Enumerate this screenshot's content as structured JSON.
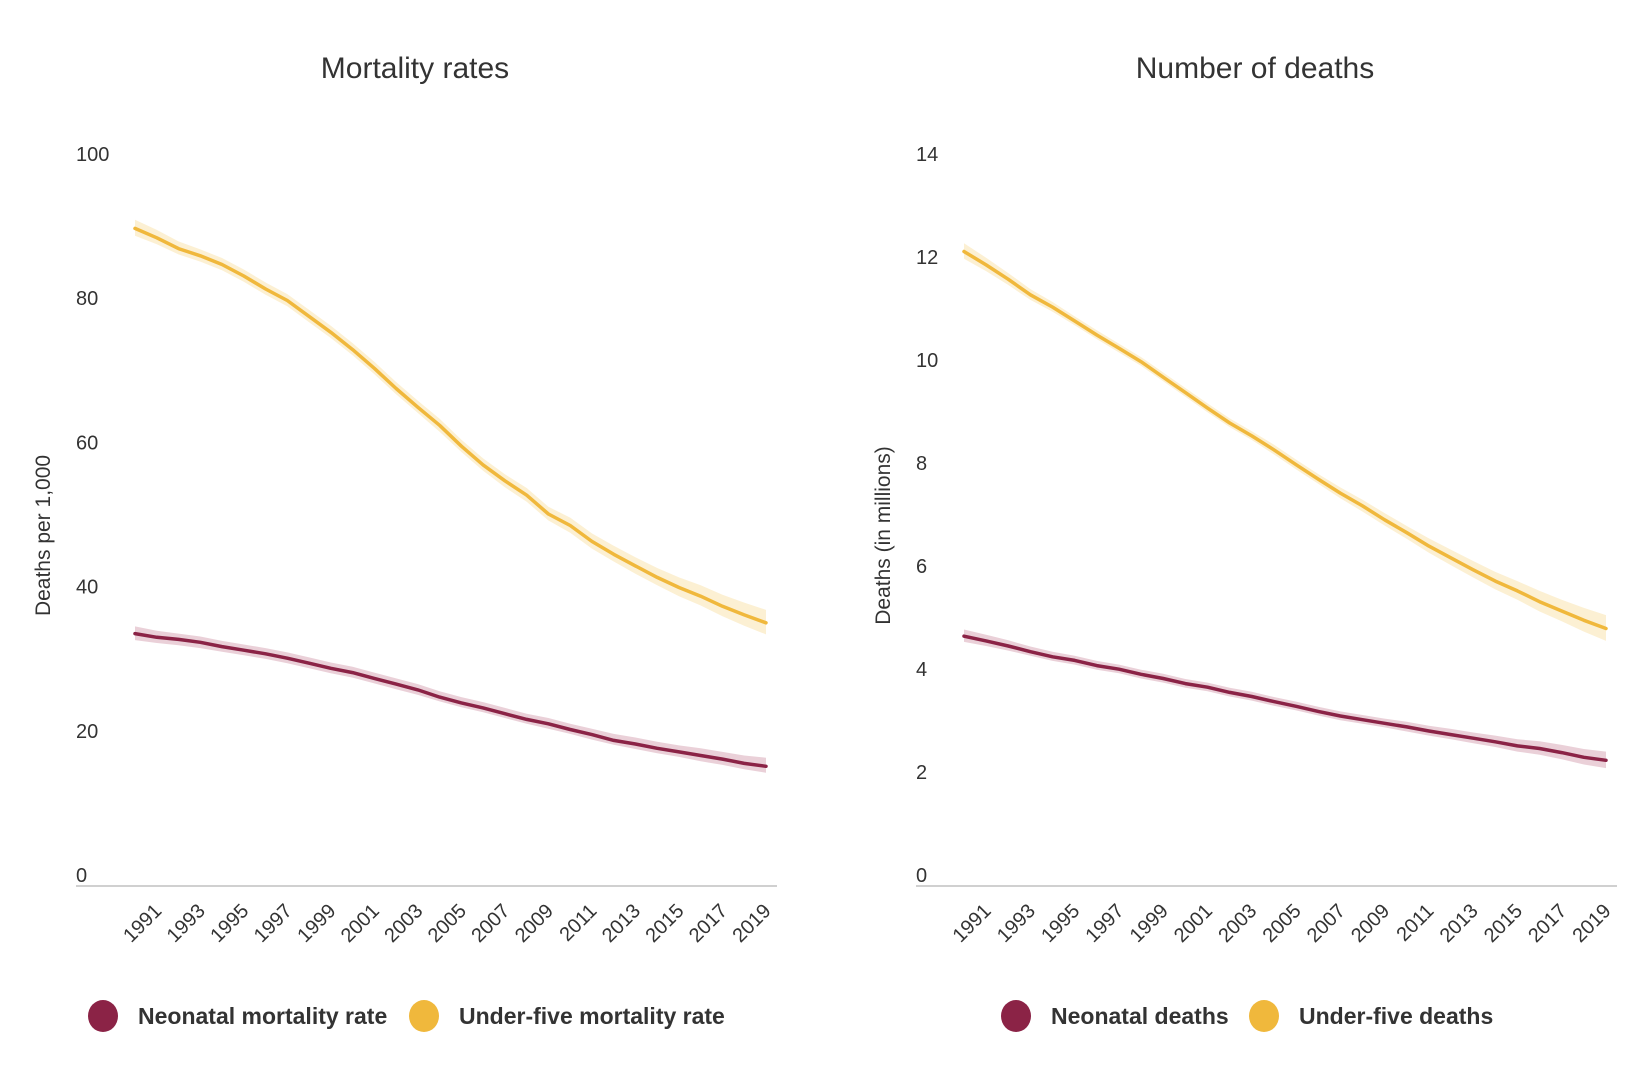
{
  "chart_data": [
    {
      "type": "line",
      "title": "Mortality rates",
      "xlabel": "",
      "ylabel": "Deaths per 1,000",
      "ylim": [
        0,
        100
      ],
      "yticks": [
        0,
        20,
        40,
        60,
        80,
        100
      ],
      "xlim": [
        1990,
        2019
      ],
      "xtick_labels": [
        "1991",
        "1993",
        "1995",
        "1997",
        "1999",
        "2001",
        "2003",
        "2005",
        "2007",
        "2009",
        "2011",
        "2013",
        "2015",
        "2017",
        "2019"
      ],
      "grid": false,
      "legend_position": "bottom",
      "x": [
        1990,
        1991,
        1992,
        1993,
        1994,
        1995,
        1996,
        1997,
        1998,
        1999,
        2000,
        2001,
        2002,
        2003,
        2004,
        2005,
        2006,
        2007,
        2008,
        2009,
        2010,
        2011,
        2012,
        2013,
        2014,
        2015,
        2016,
        2017,
        2018,
        2019
      ],
      "series": [
        {
          "name": "Neonatal mortality rate",
          "color": "#8b2346",
          "band_color": "#d9a9b8",
          "values": [
            35.0,
            34.5,
            34.2,
            33.8,
            33.2,
            32.7,
            32.2,
            31.6,
            30.9,
            30.2,
            29.6,
            28.8,
            28.0,
            27.2,
            26.2,
            25.4,
            24.7,
            23.9,
            23.1,
            22.5,
            21.7,
            21.0,
            20.2,
            19.7,
            19.1,
            18.6,
            18.1,
            17.6,
            17.0,
            16.6
          ],
          "lower": [
            34.1,
            33.7,
            33.4,
            33.0,
            32.5,
            32.0,
            31.5,
            30.9,
            30.2,
            29.5,
            28.9,
            28.1,
            27.3,
            26.5,
            25.6,
            24.8,
            24.1,
            23.3,
            22.5,
            21.8,
            21.1,
            20.3,
            19.6,
            19.0,
            18.4,
            17.9,
            17.3,
            16.8,
            16.2,
            15.7
          ],
          "upper": [
            36.0,
            35.4,
            35.0,
            34.6,
            34.0,
            33.5,
            33.0,
            32.4,
            31.7,
            31.0,
            30.4,
            29.6,
            28.8,
            28.0,
            27.0,
            26.2,
            25.5,
            24.7,
            23.9,
            23.3,
            22.5,
            21.8,
            21.1,
            20.6,
            20.0,
            19.5,
            19.1,
            18.6,
            18.1,
            17.8
          ]
        },
        {
          "name": "Under-five mortality rate",
          "color": "#f0b83c",
          "band_color": "#f9e3ae",
          "values": [
            91.2,
            89.9,
            88.4,
            87.4,
            86.2,
            84.6,
            82.8,
            81.2,
            79.0,
            76.8,
            74.4,
            71.8,
            69.0,
            66.4,
            63.9,
            61.0,
            58.4,
            56.2,
            54.2,
            51.6,
            50.0,
            47.8,
            46.0,
            44.4,
            42.8,
            41.4,
            40.2,
            38.8,
            37.6,
            36.5
          ],
          "lower": [
            90.2,
            89.0,
            87.6,
            86.6,
            85.4,
            83.8,
            82.0,
            80.4,
            78.2,
            76.0,
            73.6,
            71.0,
            68.2,
            65.6,
            63.0,
            60.2,
            57.6,
            55.3,
            53.3,
            50.7,
            49.0,
            46.8,
            45.0,
            43.3,
            41.7,
            40.2,
            38.9,
            37.4,
            36.1,
            34.9
          ],
          "upper": [
            92.4,
            91.0,
            89.4,
            88.3,
            87.1,
            85.5,
            83.7,
            82.1,
            79.9,
            77.7,
            75.3,
            72.7,
            69.9,
            67.3,
            64.8,
            61.9,
            59.3,
            57.1,
            55.2,
            52.6,
            51.1,
            48.9,
            47.2,
            45.6,
            44.1,
            42.8,
            41.7,
            40.4,
            39.3,
            38.3
          ]
        }
      ]
    },
    {
      "type": "line",
      "title": "Number of deaths",
      "xlabel": "",
      "ylabel": "Deaths (in millions)",
      "ylim": [
        0,
        14
      ],
      "yticks": [
        0,
        2,
        4,
        6,
        8,
        10,
        12,
        14
      ],
      "xlim": [
        1990,
        2019
      ],
      "xtick_labels": [
        "1991",
        "1993",
        "1995",
        "1997",
        "1999",
        "2001",
        "2003",
        "2005",
        "2007",
        "2009",
        "2011",
        "2013",
        "2015",
        "2017",
        "2019"
      ],
      "grid": false,
      "legend_position": "bottom",
      "x": [
        1990,
        1991,
        1992,
        1993,
        1994,
        1995,
        1996,
        1997,
        1998,
        1999,
        2000,
        2001,
        2002,
        2003,
        2004,
        2005,
        2006,
        2007,
        2008,
        2009,
        2010,
        2011,
        2012,
        2013,
        2014,
        2015,
        2016,
        2017,
        2018,
        2019
      ],
      "series": [
        {
          "name": "Neonatal deaths",
          "color": "#8b2346",
          "band_color": "#d9a9b8",
          "values": [
            4.85,
            4.76,
            4.66,
            4.55,
            4.45,
            4.38,
            4.28,
            4.21,
            4.11,
            4.03,
            3.93,
            3.86,
            3.76,
            3.68,
            3.58,
            3.49,
            3.39,
            3.3,
            3.23,
            3.16,
            3.09,
            3.01,
            2.94,
            2.87,
            2.8,
            2.72,
            2.67,
            2.59,
            2.5,
            2.44
          ],
          "lower": [
            4.74,
            4.66,
            4.57,
            4.47,
            4.37,
            4.3,
            4.2,
            4.13,
            4.03,
            3.95,
            3.85,
            3.78,
            3.68,
            3.6,
            3.5,
            3.41,
            3.31,
            3.22,
            3.15,
            3.08,
            3.0,
            2.92,
            2.85,
            2.77,
            2.7,
            2.61,
            2.55,
            2.46,
            2.36,
            2.29
          ],
          "upper": [
            4.98,
            4.88,
            4.77,
            4.65,
            4.55,
            4.47,
            4.37,
            4.3,
            4.2,
            4.12,
            4.02,
            3.95,
            3.85,
            3.77,
            3.67,
            3.58,
            3.48,
            3.39,
            3.32,
            3.25,
            3.19,
            3.11,
            3.05,
            2.98,
            2.92,
            2.85,
            2.81,
            2.74,
            2.66,
            2.61
          ]
        },
        {
          "name": "Under-five deaths",
          "color": "#f0b83c",
          "band_color": "#f9e3ae",
          "values": [
            12.32,
            12.06,
            11.78,
            11.48,
            11.24,
            10.97,
            10.7,
            10.44,
            10.18,
            9.88,
            9.58,
            9.28,
            8.99,
            8.74,
            8.47,
            8.18,
            7.9,
            7.63,
            7.38,
            7.11,
            6.86,
            6.6,
            6.37,
            6.14,
            5.92,
            5.73,
            5.52,
            5.34,
            5.16,
            5.0
          ],
          "lower": [
            12.18,
            11.94,
            11.67,
            11.38,
            11.15,
            10.89,
            10.62,
            10.36,
            10.1,
            9.8,
            9.5,
            9.2,
            8.91,
            8.66,
            8.38,
            8.09,
            7.81,
            7.53,
            7.27,
            7.0,
            6.74,
            6.47,
            6.23,
            5.99,
            5.76,
            5.56,
            5.33,
            5.14,
            4.94,
            4.76
          ],
          "upper": [
            12.48,
            12.2,
            11.9,
            11.59,
            11.34,
            11.06,
            10.79,
            10.53,
            10.27,
            9.97,
            9.67,
            9.37,
            9.08,
            8.83,
            8.57,
            8.28,
            8.0,
            7.74,
            7.5,
            7.24,
            6.99,
            6.75,
            6.53,
            6.31,
            6.1,
            5.92,
            5.73,
            5.56,
            5.4,
            5.26
          ]
        }
      ]
    }
  ]
}
